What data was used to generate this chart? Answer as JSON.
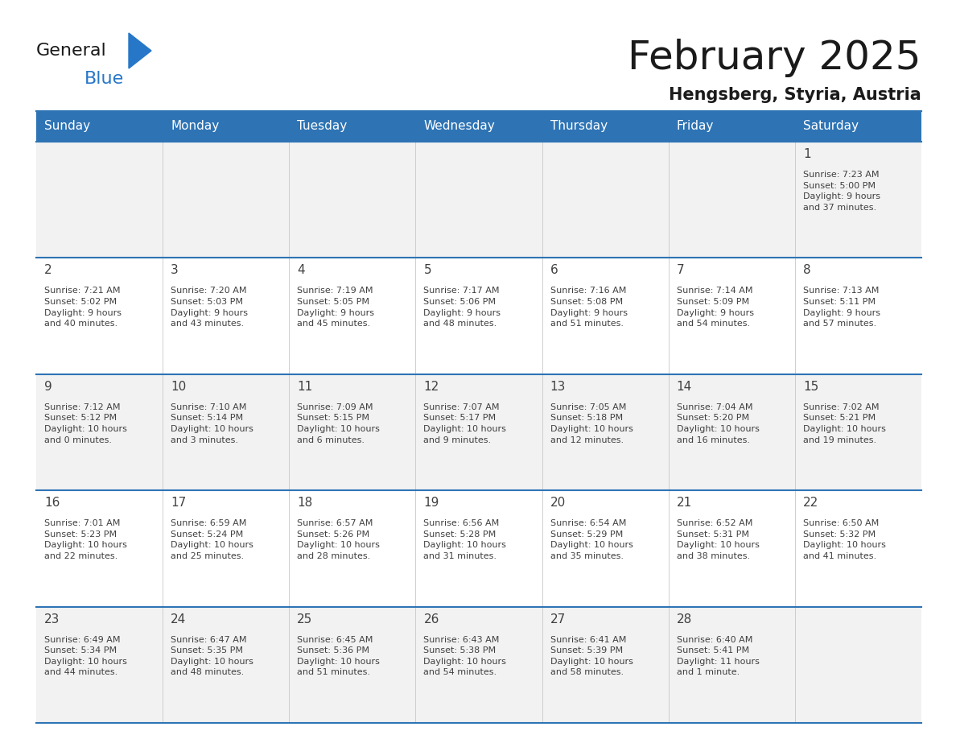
{
  "title": "February 2025",
  "subtitle": "Hengsberg, Styria, Austria",
  "header_bg": "#2E74B5",
  "header_text_color": "#FFFFFF",
  "row_bg_odd": "#FFFFFF",
  "row_bg_even": "#F2F2F2",
  "border_color": "#2E74B5",
  "separator_color": "#AAAAAA",
  "text_color": "#404040",
  "days_of_week": [
    "Sunday",
    "Monday",
    "Tuesday",
    "Wednesday",
    "Thursday",
    "Friday",
    "Saturday"
  ],
  "calendar_data": [
    [
      {
        "day": null,
        "info": null
      },
      {
        "day": null,
        "info": null
      },
      {
        "day": null,
        "info": null
      },
      {
        "day": null,
        "info": null
      },
      {
        "day": null,
        "info": null
      },
      {
        "day": null,
        "info": null
      },
      {
        "day": "1",
        "info": "Sunrise: 7:23 AM\nSunset: 5:00 PM\nDaylight: 9 hours\nand 37 minutes."
      }
    ],
    [
      {
        "day": "2",
        "info": "Sunrise: 7:21 AM\nSunset: 5:02 PM\nDaylight: 9 hours\nand 40 minutes."
      },
      {
        "day": "3",
        "info": "Sunrise: 7:20 AM\nSunset: 5:03 PM\nDaylight: 9 hours\nand 43 minutes."
      },
      {
        "day": "4",
        "info": "Sunrise: 7:19 AM\nSunset: 5:05 PM\nDaylight: 9 hours\nand 45 minutes."
      },
      {
        "day": "5",
        "info": "Sunrise: 7:17 AM\nSunset: 5:06 PM\nDaylight: 9 hours\nand 48 minutes."
      },
      {
        "day": "6",
        "info": "Sunrise: 7:16 AM\nSunset: 5:08 PM\nDaylight: 9 hours\nand 51 minutes."
      },
      {
        "day": "7",
        "info": "Sunrise: 7:14 AM\nSunset: 5:09 PM\nDaylight: 9 hours\nand 54 minutes."
      },
      {
        "day": "8",
        "info": "Sunrise: 7:13 AM\nSunset: 5:11 PM\nDaylight: 9 hours\nand 57 minutes."
      }
    ],
    [
      {
        "day": "9",
        "info": "Sunrise: 7:12 AM\nSunset: 5:12 PM\nDaylight: 10 hours\nand 0 minutes."
      },
      {
        "day": "10",
        "info": "Sunrise: 7:10 AM\nSunset: 5:14 PM\nDaylight: 10 hours\nand 3 minutes."
      },
      {
        "day": "11",
        "info": "Sunrise: 7:09 AM\nSunset: 5:15 PM\nDaylight: 10 hours\nand 6 minutes."
      },
      {
        "day": "12",
        "info": "Sunrise: 7:07 AM\nSunset: 5:17 PM\nDaylight: 10 hours\nand 9 minutes."
      },
      {
        "day": "13",
        "info": "Sunrise: 7:05 AM\nSunset: 5:18 PM\nDaylight: 10 hours\nand 12 minutes."
      },
      {
        "day": "14",
        "info": "Sunrise: 7:04 AM\nSunset: 5:20 PM\nDaylight: 10 hours\nand 16 minutes."
      },
      {
        "day": "15",
        "info": "Sunrise: 7:02 AM\nSunset: 5:21 PM\nDaylight: 10 hours\nand 19 minutes."
      }
    ],
    [
      {
        "day": "16",
        "info": "Sunrise: 7:01 AM\nSunset: 5:23 PM\nDaylight: 10 hours\nand 22 minutes."
      },
      {
        "day": "17",
        "info": "Sunrise: 6:59 AM\nSunset: 5:24 PM\nDaylight: 10 hours\nand 25 minutes."
      },
      {
        "day": "18",
        "info": "Sunrise: 6:57 AM\nSunset: 5:26 PM\nDaylight: 10 hours\nand 28 minutes."
      },
      {
        "day": "19",
        "info": "Sunrise: 6:56 AM\nSunset: 5:28 PM\nDaylight: 10 hours\nand 31 minutes."
      },
      {
        "day": "20",
        "info": "Sunrise: 6:54 AM\nSunset: 5:29 PM\nDaylight: 10 hours\nand 35 minutes."
      },
      {
        "day": "21",
        "info": "Sunrise: 6:52 AM\nSunset: 5:31 PM\nDaylight: 10 hours\nand 38 minutes."
      },
      {
        "day": "22",
        "info": "Sunrise: 6:50 AM\nSunset: 5:32 PM\nDaylight: 10 hours\nand 41 minutes."
      }
    ],
    [
      {
        "day": "23",
        "info": "Sunrise: 6:49 AM\nSunset: 5:34 PM\nDaylight: 10 hours\nand 44 minutes."
      },
      {
        "day": "24",
        "info": "Sunrise: 6:47 AM\nSunset: 5:35 PM\nDaylight: 10 hours\nand 48 minutes."
      },
      {
        "day": "25",
        "info": "Sunrise: 6:45 AM\nSunset: 5:36 PM\nDaylight: 10 hours\nand 51 minutes."
      },
      {
        "day": "26",
        "info": "Sunrise: 6:43 AM\nSunset: 5:38 PM\nDaylight: 10 hours\nand 54 minutes."
      },
      {
        "day": "27",
        "info": "Sunrise: 6:41 AM\nSunset: 5:39 PM\nDaylight: 10 hours\nand 58 minutes."
      },
      {
        "day": "28",
        "info": "Sunrise: 6:40 AM\nSunset: 5:41 PM\nDaylight: 11 hours\nand 1 minute."
      },
      {
        "day": null,
        "info": null
      }
    ]
  ],
  "logo_color_general": "#1a1a1a",
  "logo_color_blue": "#2777C8",
  "logo_triangle_color": "#2777C8",
  "title_fontsize": 36,
  "subtitle_fontsize": 15,
  "day_header_fontsize": 11,
  "day_number_fontsize": 11,
  "cell_info_fontsize": 8
}
